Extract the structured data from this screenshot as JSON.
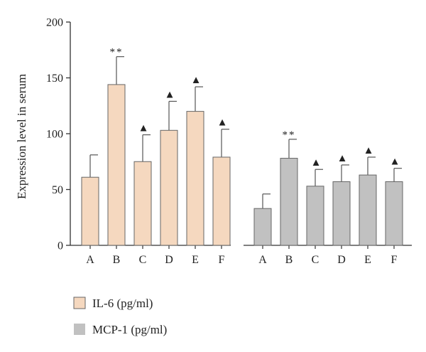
{
  "chart_data": {
    "type": "bar",
    "title": "",
    "xlabel": "",
    "ylabel": "Expression level in serum",
    "ylim": [
      0,
      200
    ],
    "yticks": [
      0,
      50,
      100,
      150,
      200
    ],
    "grid": false,
    "legend_position": "bottom-left",
    "groups": [
      {
        "series": "IL-6 (pg/ml)",
        "color": "#f5d8bf",
        "categories": [
          "A",
          "B",
          "C",
          "D",
          "E",
          "F"
        ],
        "values": [
          61,
          144,
          75,
          103,
          120,
          79
        ],
        "errors": [
          20,
          25,
          24,
          26,
          22,
          25
        ],
        "annotations": [
          "",
          "**",
          "▲",
          "▲",
          "▲",
          "▲"
        ]
      },
      {
        "series": "MCP-1 (pg/ml)",
        "color": "#c1c1c1",
        "categories": [
          "A",
          "B",
          "C",
          "D",
          "E",
          "F"
        ],
        "values": [
          33,
          78,
          53,
          57,
          63,
          57
        ],
        "errors": [
          13,
          17,
          15,
          15,
          16,
          12
        ],
        "annotations": [
          "",
          "**",
          "▲",
          "▲",
          "▲",
          "▲"
        ]
      }
    ],
    "legend": [
      {
        "label": "IL-6 (pg/ml)",
        "color": "#f5d8bf"
      },
      {
        "label": "MCP-1 (pg/ml)",
        "color": "#c1c1c1"
      }
    ]
  }
}
